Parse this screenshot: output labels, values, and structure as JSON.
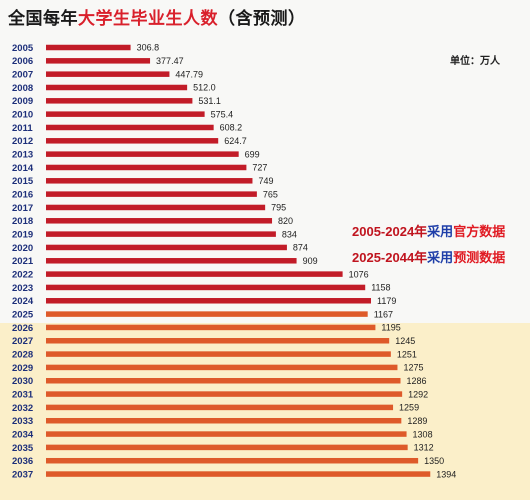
{
  "header": {
    "title_prefix": "全国每年",
    "title_highlight": "大学生毕业生人数",
    "title_suffix": "（含预测）",
    "unit": "单位：万人"
  },
  "notes": {
    "official_years": "2005-2024年",
    "official_mid": "采用",
    "official_label": "官方数据",
    "forecast_years": "2025-2044年",
    "forecast_mid": "采用",
    "forecast_label": "预测数据"
  },
  "colors": {
    "official_bar": "#c21c28",
    "forecast_bar": "#de5a2a",
    "forecast_background": "#fbefc9"
  },
  "chart_data": {
    "type": "bar",
    "orientation": "horizontal",
    "title": "全国每年大学生毕业生人数（含预测）",
    "unit": "万人",
    "categories": [
      "2005",
      "2006",
      "2007",
      "2008",
      "2009",
      "2010",
      "2011",
      "2012",
      "2013",
      "2014",
      "2015",
      "2016",
      "2017",
      "2018",
      "2019",
      "2020",
      "2021",
      "2022",
      "2023",
      "2024",
      "2025",
      "2026",
      "2027",
      "2028",
      "2029",
      "2030",
      "2031",
      "2032",
      "2033",
      "2034",
      "2035",
      "2036",
      "2037"
    ],
    "values": [
      306.8,
      377.47,
      447.79,
      512.0,
      531.1,
      575.4,
      608.2,
      624.7,
      699,
      727,
      749,
      765,
      795,
      820,
      834,
      874,
      909,
      1076,
      1158,
      1179,
      1167,
      1195,
      1245,
      1251,
      1275,
      1286,
      1292,
      1259,
      1289,
      1308,
      1312,
      1350,
      1394
    ],
    "value_labels": [
      "306.8",
      "377.47",
      "447.79",
      "512.0",
      "531.1",
      "575.4",
      "608.2",
      "624.7",
      "699",
      "727",
      "749",
      "765",
      "795",
      "820",
      "834",
      "874",
      "909",
      "1076",
      "1158",
      "1179",
      "1167",
      "1195",
      "1245",
      "1251",
      "1275",
      "1286",
      "1292",
      "1259",
      "1289",
      "1308",
      "1312",
      "1350",
      "1394"
    ],
    "series": [
      {
        "name": "官方数据",
        "years": "2005-2024"
      },
      {
        "name": "预测数据",
        "years": "2025-2044"
      }
    ]
  }
}
